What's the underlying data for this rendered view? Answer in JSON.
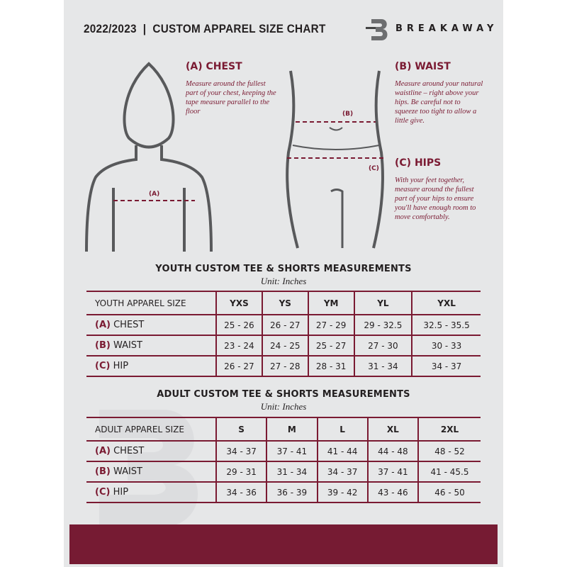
{
  "header": {
    "title": "2022/2023  |  CUSTOM APPAREL SIZE CHART",
    "brand": "BREAKAWAY",
    "logo_letter": "B"
  },
  "guides": {
    "chest": {
      "heading": "(A) CHEST",
      "marker": "(A)",
      "text": "Measure around the fullest part of your chest, keeping the tape measure parallel to the floor"
    },
    "waist": {
      "heading": "(B) WAIST",
      "marker": "(B)",
      "text": "Measure around your natural waistline – right above your hips. Be careful not to squeeze too tight to allow a little give."
    },
    "hips": {
      "heading": "(C) HIPS",
      "marker": "(C)",
      "text": "With your feet together, measure around the fullest part of your hips to ensure you'll have enough room to move comfortably."
    }
  },
  "youth": {
    "title": "YOUTH CUSTOM TEE & SHORTS MEASUREMENTS",
    "unit": "Unit: Inches",
    "header": [
      "YOUTH APPAREL SIZE",
      "YXS",
      "YS",
      "YM",
      "YL",
      "YXL"
    ],
    "rows": [
      {
        "letter": "(A)",
        "label": "CHEST",
        "values": [
          "25 - 26",
          "26 - 27",
          "27 - 29",
          "29 - 32.5",
          "32.5 - 35.5"
        ]
      },
      {
        "letter": "(B)",
        "label": "WAIST",
        "values": [
          "23 - 24",
          "24 - 25",
          "25 - 27",
          "27 - 30",
          "30 - 33"
        ]
      },
      {
        "letter": "(C)",
        "label": "HIP",
        "values": [
          "26 - 27",
          "27 - 28",
          "28 - 31",
          "31 - 34",
          "34 - 37"
        ]
      }
    ]
  },
  "adult": {
    "title": "ADULT CUSTOM TEE & SHORTS MEASUREMENTS",
    "unit": "Unit: Inches",
    "header": [
      "ADULT APPAREL SIZE",
      "S",
      "M",
      "L",
      "XL",
      "2XL"
    ],
    "rows": [
      {
        "letter": "(A)",
        "label": "CHEST",
        "values": [
          "34 - 37",
          "37 - 41",
          "41 - 44",
          "44 - 48",
          "48 - 52"
        ]
      },
      {
        "letter": "(B)",
        "label": "WAIST",
        "values": [
          "29 - 31",
          "31 - 34",
          "34 - 37",
          "37 - 41",
          "41 - 45.5"
        ]
      },
      {
        "letter": "(C)",
        "label": "HIP",
        "values": [
          "34 - 36",
          "36 - 39",
          "39 - 42",
          "43 - 46",
          "46 - 50"
        ]
      }
    ]
  },
  "colors": {
    "accent": "#7a1a32",
    "background": "#e6e7e8"
  }
}
